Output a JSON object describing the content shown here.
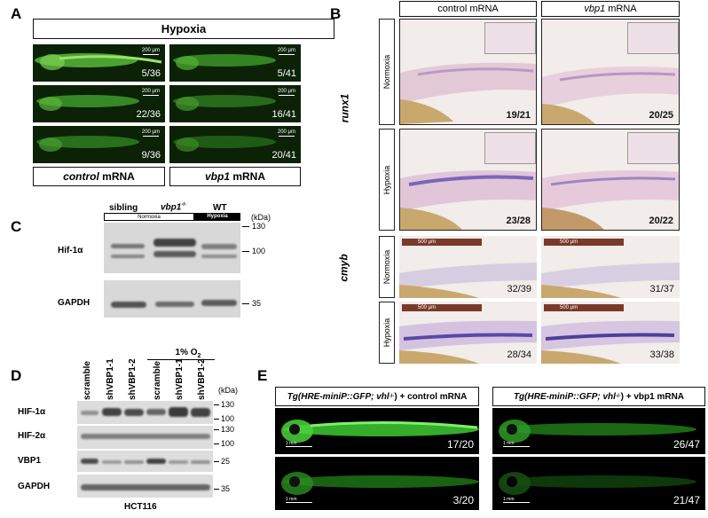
{
  "panel_letters": {
    "a": "A",
    "b": "B",
    "c": "C",
    "d": "D",
    "e": "E"
  },
  "panel_a": {
    "header": "Hypoxia",
    "scale_bar": "200 μm",
    "left_counts": [
      "5/36",
      "22/36",
      "9/36"
    ],
    "right_counts": [
      "5/41",
      "16/41",
      "20/41"
    ],
    "left_label_italic": "control",
    "left_label_rest": " mRNA",
    "right_label_italic": "vbp1",
    "right_label_rest": " mRNA"
  },
  "panel_b": {
    "col1": "control mRNA",
    "col2_italic": "vbp1",
    "col2_rest": " mRNA",
    "gene1": "runx1",
    "gene2": "cmyb",
    "normoxia": "Normoxia",
    "hypoxia": "Hypoxia",
    "runx1_counts": [
      "19/21",
      "20/25",
      "23/28",
      "20/22"
    ],
    "cmyb_counts": [
      "32/39",
      "31/37",
      "28/34",
      "33/38"
    ],
    "scale_bar": "500 μm"
  },
  "panel_c": {
    "sibling": "sibling",
    "vbp1": "vbp1",
    "vbp1_sup": "-/-",
    "wt": "WT",
    "normoxia": "Normoxia",
    "hypoxia": "Hypoxia",
    "kda": "(kDa)",
    "hif": "Hif-1α",
    "gapdh": "GAPDH",
    "markers": [
      "130",
      "100",
      "35"
    ]
  },
  "panel_d": {
    "lanes": [
      "scramble",
      "shVBP1-1",
      "shVBP1-2",
      "scramble",
      "shVBP1-1",
      "shVBP1-2"
    ],
    "oxygen_prefix": "1% O",
    "oxygen_sub": "2",
    "kda": "(kDa)",
    "rows": [
      "HIF-1α",
      "HIF-2α",
      "VBP1",
      "GAPDH"
    ],
    "markers": [
      "130",
      "100",
      "130",
      "100",
      "25",
      "35"
    ],
    "cell_line": "HCT116"
  },
  "panel_e": {
    "left_prefix": "Tg(HRE-miniP::GFP; vhl",
    "left_sup": "-/-",
    "left_suffix": ") + control mRNA",
    "right_prefix": "Tg(HRE-miniP::GFP; vhl",
    "right_sup": "-/-",
    "right_suffix": ") + vbp1 mRNA",
    "counts": [
      "17/20",
      "26/47",
      "3/20",
      "21/47"
    ],
    "scale_bar": "1 mm"
  }
}
